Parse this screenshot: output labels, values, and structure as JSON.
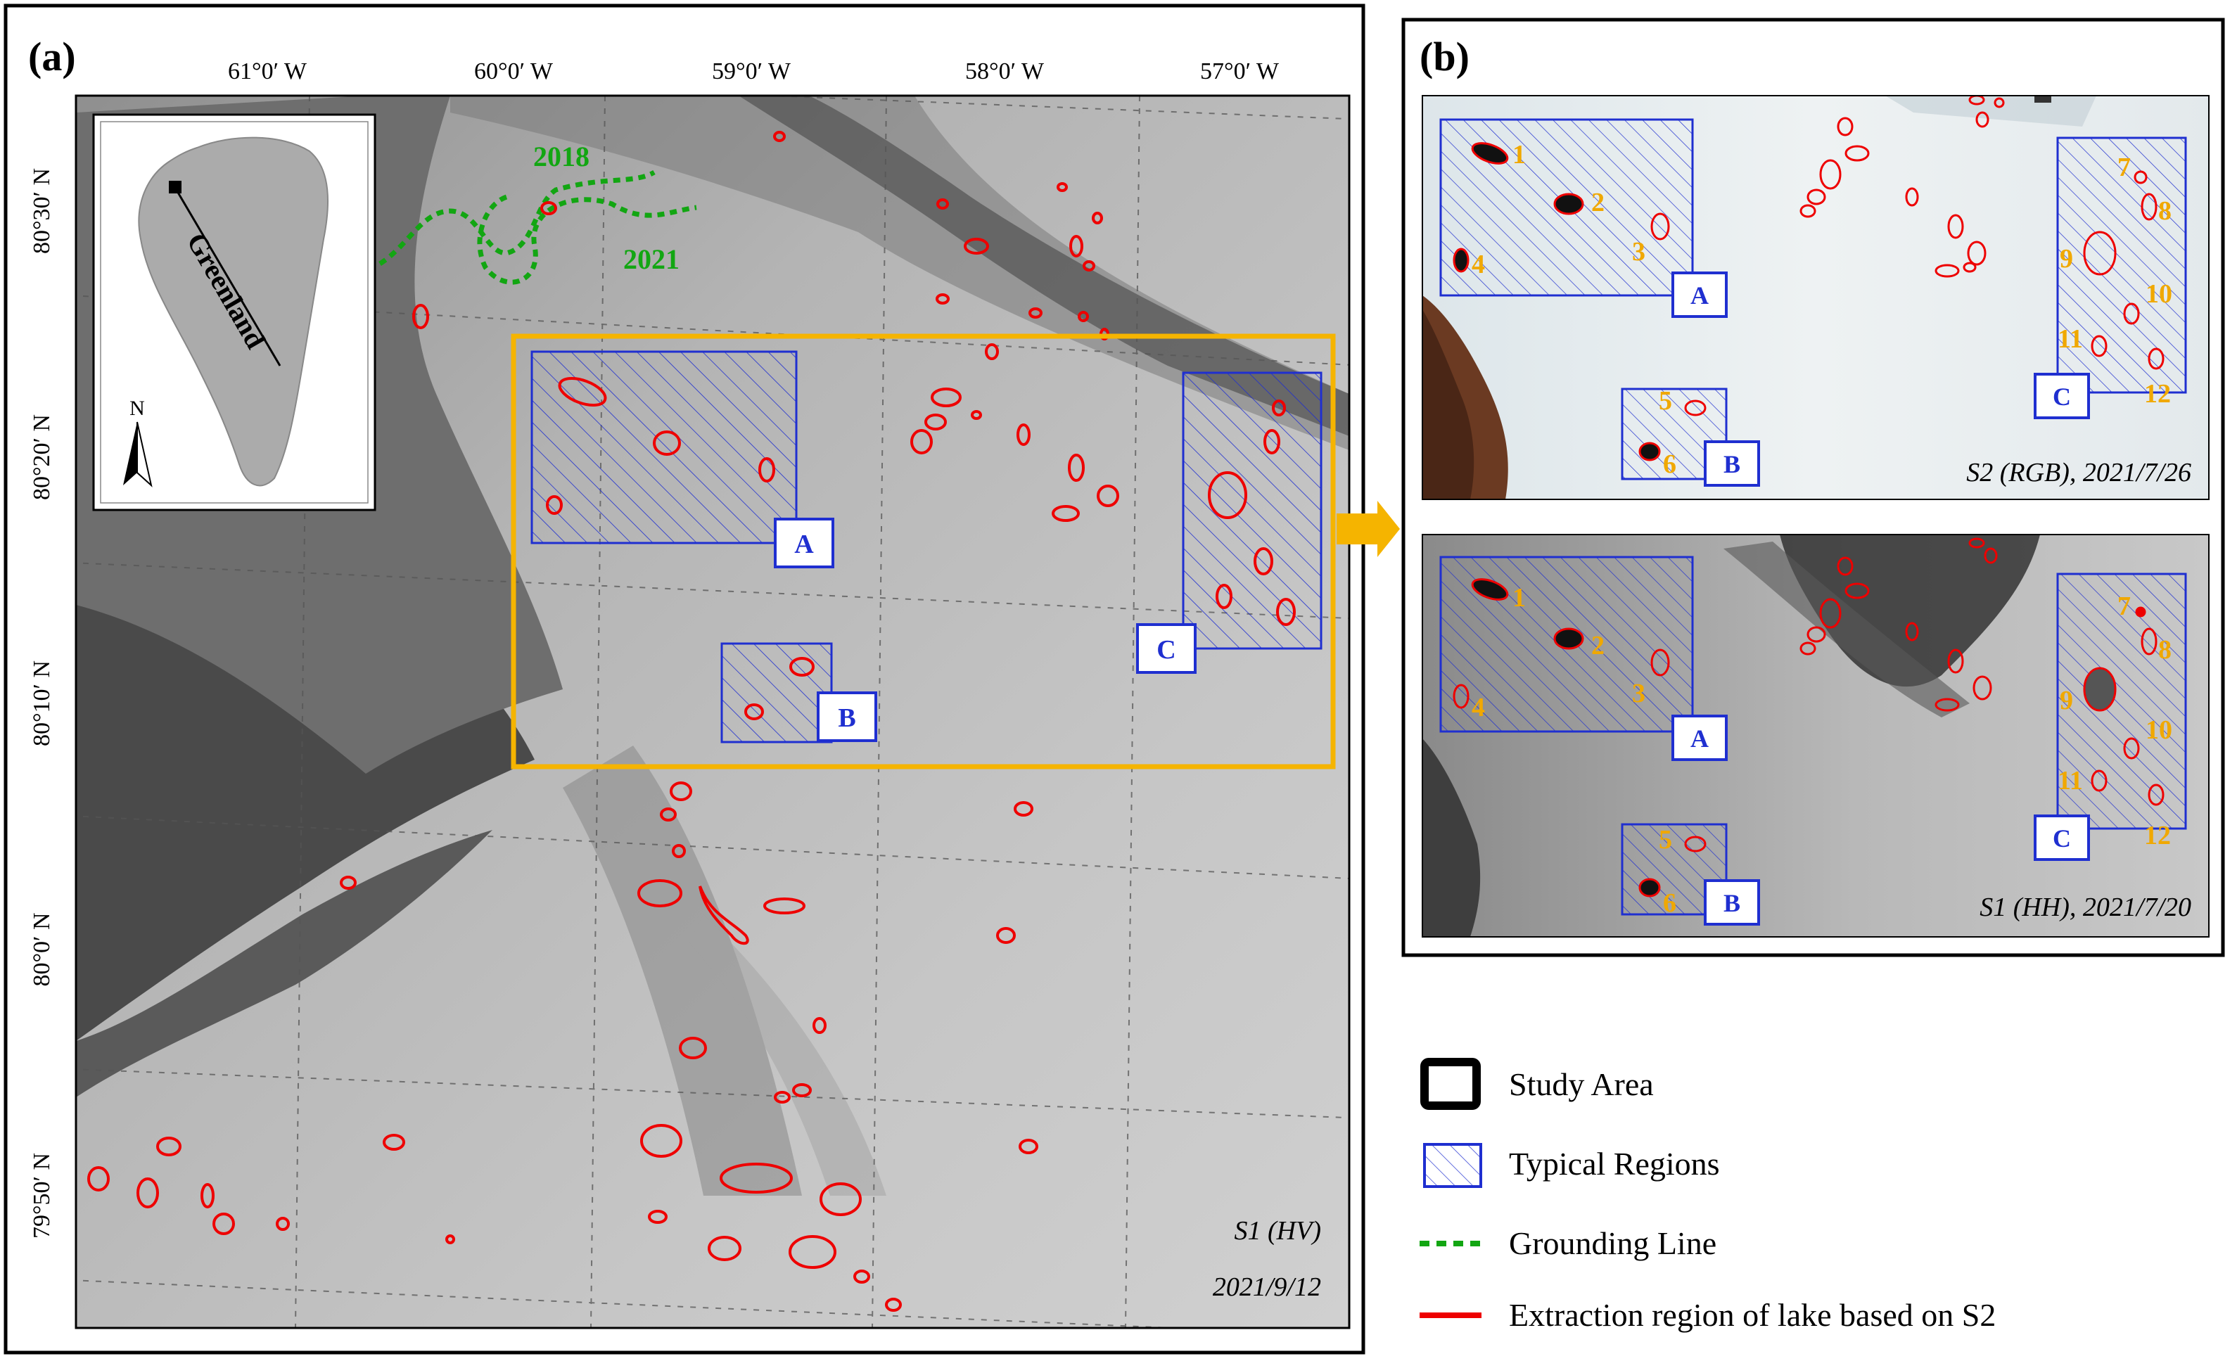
{
  "panel_a": {
    "label": "(a)",
    "lon_labels": [
      "61°0′ W",
      "60°0′ W",
      "59°0′ W",
      "58°0′ W",
      "57°0′ W"
    ],
    "lat_labels": [
      "80°30′ N",
      "80°20′ N",
      "80°10′ N",
      "80°0′ N",
      "79°50′ N"
    ],
    "sensor_label": "S1 (HV)",
    "date_label": "2021/9/12",
    "grounding_years": [
      "2018",
      "2021"
    ],
    "region_labels": [
      "A",
      "B",
      "C"
    ],
    "inset": {
      "country_label": "Greenland",
      "north_label": "N"
    }
  },
  "panel_b": {
    "label": "(b)",
    "top": {
      "caption": "S2 (RGB), 2021/7/26"
    },
    "bottom": {
      "caption": "S1 (HH), 2021/7/20"
    },
    "region_labels": [
      "A",
      "B",
      "C"
    ],
    "lake_numbers": [
      "1",
      "2",
      "3",
      "4",
      "5",
      "6",
      "7",
      "8",
      "9",
      "10",
      "11",
      "12"
    ]
  },
  "legend": {
    "items": [
      {
        "label": "Study Area",
        "symbol": "black-box"
      },
      {
        "label": "Typical Regions",
        "symbol": "hatched-blue-box"
      },
      {
        "label": "Grounding Line",
        "symbol": "green-dashed-line"
      },
      {
        "label": "Extraction region of lake based on S2",
        "symbol": "red-line"
      }
    ]
  },
  "colors": {
    "study_area": "#f5b400",
    "typical_region": "#1f2fd0",
    "grounding_line": "#12a612",
    "lake_outline": "#ee0000",
    "lake_number": "#f0a800"
  }
}
